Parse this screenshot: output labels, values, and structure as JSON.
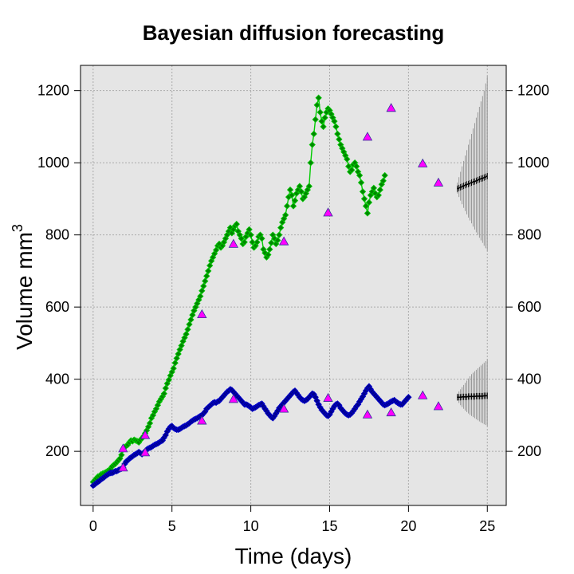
{
  "chart_data": {
    "type": "scatter",
    "title": "Bayesian diffusion forecasting",
    "xlabel": "Time (days)",
    "ylabel": "Volume mm",
    "ylabel_superscript": "3",
    "xlim": [
      -0.8,
      26.2
    ],
    "ylim": [
      50,
      1270
    ],
    "x_ticks": [
      0,
      5,
      10,
      15,
      20,
      25
    ],
    "y_ticks": [
      200,
      400,
      600,
      800,
      1000,
      1200
    ],
    "grid": true,
    "background": "#e5e5e5",
    "legend": "none",
    "forecast_start": 23.1,
    "forecast_end": 25,
    "series": [
      {
        "color": "#00cc00",
        "marker_fill": "#008800",
        "marker": "diamond",
        "connected": true,
        "x_start": 0,
        "x_step": 0.1,
        "values": [
          115,
          120,
          125,
          130,
          132,
          136,
          138,
          140,
          142,
          145,
          148,
          150,
          158,
          162,
          165,
          170,
          175,
          180,
          190,
          205,
          212,
          215,
          218,
          225,
          230,
          228,
          232,
          230,
          228,
          225,
          232,
          236,
          242,
          250,
          258,
          268,
          278,
          292,
          300,
          310,
          318,
          328,
          338,
          345,
          352,
          360,
          375,
          388,
          398,
          410,
          420,
          430,
          445,
          458,
          470,
          482,
          493,
          505,
          515,
          525,
          538,
          552,
          565,
          578,
          590,
          600,
          610,
          620,
          630,
          645,
          658,
          672,
          686,
          700,
          715,
          728,
          738,
          748,
          758,
          770,
          775,
          765,
          770,
          780,
          790,
          800,
          810,
          820,
          805,
          815,
          825,
          830,
          810,
          800,
          790,
          775,
          780,
          795,
          805,
          815,
          800,
          780,
          765,
          770,
          780,
          795,
          800,
          790,
          760,
          750,
          738,
          745,
          760,
          778,
          800,
          790,
          775,
          785,
          800,
          820,
          835,
          845,
          855,
          880,
          905,
          925,
          910,
          880,
          895,
          915,
          925,
          935,
          920,
          900,
          905,
          915,
          925,
          935,
          1000,
          1050,
          1080,
          1120,
          1160,
          1180,
          1140,
          1115,
          1100,
          1125,
          1140,
          1150,
          1145,
          1135,
          1125,
          1115,
          1100,
          1080,
          1065,
          1050,
          1040,
          1030,
          1020,
          1010,
          990,
          975,
          980,
          995,
          1000,
          990,
          975,
          965,
          945,
          920,
          900,
          880,
          860,
          890,
          910,
          920,
          930,
          915,
          905,
          910,
          925,
          940,
          950,
          965
        ],
        "markers_style": "series-points"
      },
      {
        "color": "#0000cc",
        "marker_fill": "#00008b",
        "marker": "diamond",
        "connected": false,
        "x_start": 0,
        "x_step": 0.1,
        "values": [
          105,
          108,
          112,
          115,
          118,
          122,
          125,
          128,
          132,
          135,
          138,
          140,
          140,
          142,
          145,
          145,
          148,
          150,
          152,
          155,
          165,
          172,
          175,
          180,
          183,
          186,
          190,
          192,
          195,
          198,
          195,
          192,
          196,
          200,
          205,
          208,
          210,
          212,
          215,
          218,
          220,
          222,
          225,
          228,
          230,
          238,
          245,
          255,
          262,
          268,
          270,
          265,
          262,
          260,
          260,
          262,
          265,
          268,
          270,
          272,
          275,
          278,
          282,
          285,
          288,
          290,
          292,
          295,
          298,
          300,
          305,
          310,
          318,
          322,
          326,
          330,
          334,
          336,
          335,
          338,
          340,
          345,
          350,
          355,
          360,
          365,
          368,
          372,
          370,
          365,
          360,
          355,
          350,
          345,
          340,
          335,
          330,
          330,
          328,
          325,
          322,
          318,
          320,
          322,
          325,
          328,
          330,
          332,
          325,
          318,
          312,
          305,
          300,
          295,
          292,
          298,
          305,
          312,
          320,
          325,
          330,
          335,
          340,
          345,
          350,
          355,
          360,
          365,
          368,
          362,
          356,
          350,
          345,
          342,
          340,
          342,
          345,
          350,
          355,
          360,
          358,
          350,
          340,
          330,
          322,
          315,
          310,
          305,
          300,
          298,
          302,
          310,
          318,
          325,
          330,
          332,
          328,
          320,
          315,
          310,
          305,
          302,
          300,
          302,
          306,
          312,
          318,
          325,
          330,
          338,
          345,
          352,
          360,
          368,
          375,
          380,
          372,
          365,
          360,
          355,
          350,
          345,
          340,
          335,
          330,
          328,
          330,
          332,
          335,
          338,
          340,
          342,
          338,
          335,
          332,
          330,
          330,
          335,
          340,
          345,
          350
        ],
        "markers_style": "series-points"
      }
    ],
    "observations": {
      "color": "#ff00ff",
      "marker": "triangle",
      "green_x": [
        1.9,
        3.3,
        6.9,
        8.9,
        12.1,
        14.9,
        17.4,
        18.9,
        20.9,
        21.9
      ],
      "green_y": [
        208,
        245,
        580,
        775,
        782,
        862,
        1072,
        1152,
        998,
        945
      ],
      "blue_x": [
        1.9,
        3.3,
        6.9,
        8.9,
        12.1,
        14.9,
        17.4,
        18.9,
        20.9,
        21.9
      ],
      "blue_y": [
        155,
        197,
        285,
        345,
        318,
        348,
        302,
        308,
        355,
        325
      ]
    },
    "forecasts": [
      {
        "color": "#000000",
        "interval_color": "#999999",
        "x": [
          23.1,
          23.2,
          23.3,
          23.4,
          23.5,
          23.6,
          23.7,
          23.8,
          23.9,
          24.0,
          24.1,
          24.2,
          24.3,
          24.4,
          24.5,
          24.6,
          24.7,
          24.8,
          24.9,
          25.0
        ],
        "mean": [
          928,
          930,
          932,
          934,
          936,
          938,
          940,
          941,
          943,
          945,
          947,
          948,
          950,
          952,
          954,
          956,
          957,
          959,
          961,
          963
        ],
        "lower": [
          915,
          905,
          895,
          885,
          875,
          866,
          857,
          848,
          840,
          832,
          823,
          815,
          807,
          800,
          792,
          785,
          778,
          770,
          763,
          756
        ],
        "upper": [
          945,
          960,
          975,
          990,
          1005,
          1020,
          1035,
          1050,
          1065,
          1080,
          1095,
          1110,
          1125,
          1140,
          1155,
          1170,
          1185,
          1200,
          1220,
          1240
        ]
      },
      {
        "color": "#000000",
        "interval_color": "#999999",
        "x": [
          23.1,
          23.2,
          23.3,
          23.4,
          23.5,
          23.6,
          23.7,
          23.8,
          23.9,
          24.0,
          24.1,
          24.2,
          24.3,
          24.4,
          24.5,
          24.6,
          24.7,
          24.8,
          24.9,
          25.0
        ],
        "mean": [
          350,
          350,
          350,
          351,
          351,
          351,
          351,
          352,
          352,
          352,
          352,
          352,
          353,
          353,
          353,
          353,
          353,
          354,
          354,
          354
        ],
        "lower": [
          340,
          334,
          328,
          323,
          318,
          313,
          309,
          305,
          301,
          298,
          295,
          292,
          289,
          286,
          283,
          280,
          278,
          275,
          273,
          270
        ],
        "upper": [
          360,
          366,
          372,
          378,
          384,
          390,
          396,
          402,
          408,
          414,
          418,
          422,
          426,
          430,
          434,
          438,
          442,
          446,
          450,
          455
        ]
      }
    ]
  }
}
